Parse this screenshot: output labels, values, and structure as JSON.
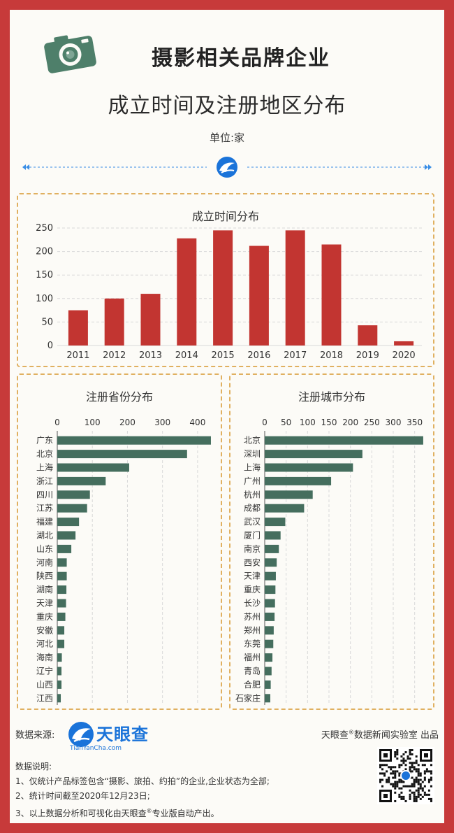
{
  "header": {
    "title": "摄影相关品牌企业",
    "subtitle": "成立时间及注册地区分布",
    "unit": "单位:家"
  },
  "colors": {
    "frame": "#c73a3a",
    "bar_year": "#c23531",
    "bar_region": "#456e5e",
    "panel_border": "#e0b060",
    "divider": "#3a8ee6"
  },
  "icons": [
    "camera-icon",
    "tianyancha-logo-icon",
    "qr-code-icon"
  ],
  "chart_data": [
    {
      "type": "bar",
      "title": "成立时间分布",
      "categories": [
        "2011",
        "2012",
        "2013",
        "2014",
        "2015",
        "2016",
        "2017",
        "2018",
        "2019",
        "2020"
      ],
      "values": [
        75,
        100,
        110,
        228,
        245,
        212,
        245,
        215,
        43,
        9
      ],
      "ylim": [
        0,
        250
      ],
      "yticks": [
        "0",
        "50",
        "100",
        "150",
        "200",
        "250"
      ],
      "grid": true
    },
    {
      "type": "bar",
      "orientation": "horizontal",
      "title": "注册省份分布",
      "categories": [
        "广东",
        "北京",
        "上海",
        "浙江",
        "四川",
        "江苏",
        "福建",
        "湖北",
        "山东",
        "河南",
        "陕西",
        "湖南",
        "天津",
        "重庆",
        "安徽",
        "河北",
        "海南",
        "辽宁",
        "山西",
        "江西"
      ],
      "values": [
        438,
        370,
        205,
        138,
        93,
        85,
        62,
        52,
        40,
        27,
        27,
        26,
        25,
        23,
        20,
        20,
        13,
        12,
        12,
        10
      ],
      "xlim": [
        0,
        450
      ],
      "xticks": [
        "0",
        "100",
        "200",
        "300",
        "400"
      ],
      "grid": true
    },
    {
      "type": "bar",
      "orientation": "horizontal",
      "title": "注册城市分布",
      "categories": [
        "北京",
        "深圳",
        "上海",
        "广州",
        "杭州",
        "成都",
        "武汉",
        "厦门",
        "南京",
        "西安",
        "天津",
        "重庆",
        "长沙",
        "苏州",
        "郑州",
        "东莞",
        "福州",
        "青岛",
        "合肥",
        "石家庄"
      ],
      "values": [
        370,
        228,
        206,
        155,
        112,
        92,
        48,
        37,
        33,
        28,
        26,
        25,
        24,
        23,
        21,
        20,
        18,
        16,
        14,
        13
      ],
      "xlim": [
        0,
        375
      ],
      "xticks": [
        "0",
        "50",
        "100",
        "150",
        "200",
        "250",
        "300",
        "350"
      ],
      "grid": true
    }
  ],
  "footer": {
    "source_label": "数据来源:",
    "brand_cn": "天眼查",
    "brand_en": "TianYanCha.com",
    "credit_brand": "天眼查",
    "credit_mark": "®",
    "credit_text": "数据新闻实验室 出品",
    "notes_title": "数据说明:",
    "note1": "1、仅统计产品标签包含“摄影、旅拍、约拍”的企业,企业状态为全部;",
    "note2": "2、统计时间截至2020年12月23日;",
    "note3_a": "3、以上数据分析和可视化由天眼查",
    "note3_mark": "®",
    "note3_b": "专业版自动产出。"
  }
}
